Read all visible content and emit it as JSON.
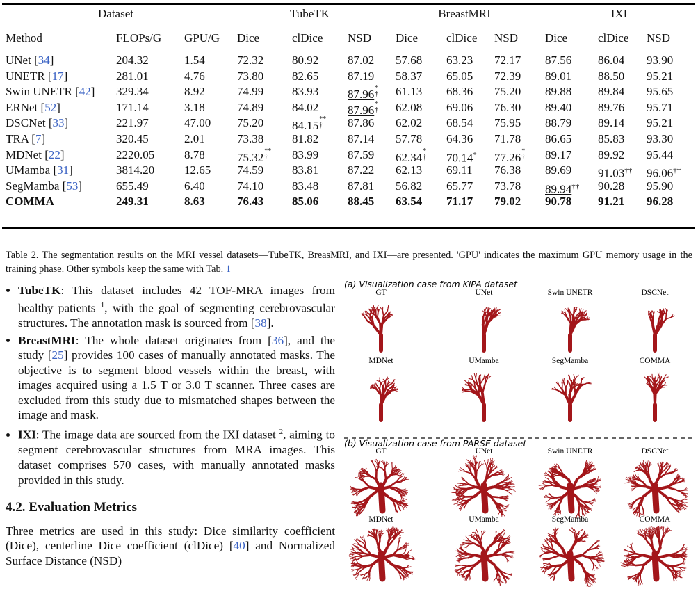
{
  "table": {
    "group_header": [
      "Dataset",
      "TubeTK",
      "BreastMRI",
      "IXI"
    ],
    "header": [
      "Method",
      "FLOPs/G",
      "GPU/G",
      "Dice",
      "clDice",
      "NSD",
      "Dice",
      "clDice",
      "NSD",
      "Dice",
      "clDice",
      "NSD"
    ],
    "rows": [
      {
        "method": [
          {
            "text": "UNet ["
          },
          {
            "text": "34",
            "style": "ref"
          },
          {
            "text": "]"
          }
        ],
        "cells": [
          "204.32",
          "1.54",
          "72.32",
          "80.92",
          "87.02",
          "57.68",
          "63.23",
          "72.17",
          "87.56",
          "86.04",
          "93.90"
        ]
      },
      {
        "method": [
          {
            "text": "UNETR ["
          },
          {
            "text": "17",
            "style": "ref"
          },
          {
            "text": "]"
          }
        ],
        "cells": [
          "281.01",
          "4.76",
          "73.80",
          "82.65",
          "87.19",
          "58.37",
          "65.05",
          "72.39",
          "89.01",
          "88.50",
          "95.21"
        ]
      },
      {
        "method": [
          {
            "text": "Swin UNETR ["
          },
          {
            "text": "42",
            "style": "ref"
          },
          {
            "text": "]"
          }
        ],
        "cells": [
          "329.34",
          "8.92",
          "74.99",
          "83.93",
          {
            "text": "87.96",
            "sup": "*",
            "sub": "†",
            "underline": true
          },
          "61.13",
          "68.36",
          "75.20",
          "89.88",
          "89.84",
          "95.65"
        ]
      },
      {
        "method": [
          {
            "text": "ERNet ["
          },
          {
            "text": "52",
            "style": "ref"
          },
          {
            "text": "]"
          }
        ],
        "cells": [
          "171.14",
          "3.18",
          "74.89",
          "84.02",
          {
            "text": "87.96",
            "sup": "*",
            "sub": "†",
            "underline": true
          },
          "62.08",
          "69.06",
          "76.30",
          "89.40",
          "89.76",
          "95.71"
        ]
      },
      {
        "method": [
          {
            "text": "DSCNet ["
          },
          {
            "text": "33",
            "style": "ref"
          },
          {
            "text": "]"
          }
        ],
        "cells": [
          "221.97",
          "47.00",
          "75.20",
          {
            "text": "84.15",
            "sup": "**",
            "sub": "†",
            "underline": true
          },
          "87.86",
          "62.02",
          "68.54",
          "75.95",
          "88.79",
          "89.14",
          "95.21"
        ]
      },
      {
        "method": [
          {
            "text": "TRA ["
          },
          {
            "text": "7",
            "style": "ref"
          },
          {
            "text": "]"
          }
        ],
        "cells": [
          "320.45",
          "2.01",
          "73.38",
          "81.82",
          "87.14",
          "57.78",
          "64.36",
          "71.78",
          "86.65",
          "85.83",
          "93.30"
        ]
      },
      {
        "method": [
          {
            "text": "MDNet ["
          },
          {
            "text": "22",
            "style": "ref"
          },
          {
            "text": "]"
          }
        ],
        "cells": [
          "2220.05",
          "8.78",
          {
            "text": "75.32",
            "sup": "**",
            "sub": "†",
            "underline": true
          },
          "83.99",
          "87.59",
          {
            "text": "62.34",
            "sup": "*",
            "sub": "†",
            "underline": true
          },
          {
            "text": "70.14",
            "sup": "*",
            "underline": true
          },
          {
            "text": "77.26",
            "sup": "*",
            "sub": "†",
            "underline": true
          },
          "89.17",
          "89.92",
          "95.44"
        ]
      },
      {
        "method": [
          {
            "text": "UMamba ["
          },
          {
            "text": "31",
            "style": "ref"
          },
          {
            "text": "]"
          }
        ],
        "cells": [
          "3814.20",
          "12.65",
          "74.59",
          "83.81",
          "87.22",
          "62.13",
          "69.11",
          "76.38",
          "89.69",
          {
            "text": "91.03",
            "sup": "††",
            "underline": true
          },
          {
            "text": "96.06",
            "sup": "††",
            "underline": true
          }
        ]
      },
      {
        "method": [
          {
            "text": "SegMamba ["
          },
          {
            "text": "53",
            "style": "ref"
          },
          {
            "text": "]"
          }
        ],
        "cells": [
          "655.49",
          "6.40",
          "74.10",
          "83.48",
          "87.81",
          "56.82",
          "65.77",
          "73.78",
          {
            "text": "89.94",
            "sup": "††",
            "underline": true
          },
          "90.28",
          "95.90"
        ]
      },
      {
        "method": [
          {
            "text": "COMMA"
          }
        ],
        "bold": true,
        "cells": [
          "249.31",
          "8.63",
          "76.43",
          "85.06",
          "88.45",
          "63.54",
          "71.17",
          "79.02",
          "90.78",
          "91.21",
          "96.28"
        ]
      }
    ]
  },
  "caption": [
    {
      "text": "Table 2. The segmentation results on the MRI vessel datasets—TubeTK, BreasMRI, and IXI—are presented. 'GPU' indicates the maximum GPU memory usage in the training phase. Other symbols keep the same with Tab. "
    },
    {
      "text": "1",
      "style": "ref"
    }
  ],
  "bullets": [
    [
      {
        "text": "TubeTK",
        "style": "bold"
      },
      {
        "text": ": This dataset includes 42 TOF-MRA images from healthy patients "
      },
      {
        "text": "1",
        "style": "sup"
      },
      {
        "text": ", with the goal of segmenting cerebrovascular structures. The annotation mask is sourced from ["
      },
      {
        "text": "38",
        "style": "ref"
      },
      {
        "text": "]."
      }
    ],
    [
      {
        "text": "BreastMRI",
        "style": "bold"
      },
      {
        "text": ": The whole dataset originates from ["
      },
      {
        "text": "36",
        "style": "ref"
      },
      {
        "text": "], and the study ["
      },
      {
        "text": "25",
        "style": "ref"
      },
      {
        "text": "] provides 100 cases of manually annotated masks. The objective is to segment blood vessels within the breast, with images acquired using a 1.5 T or 3.0 T scanner. Three cases are excluded from this study due to mismatched shapes between the image and mask."
      }
    ],
    [
      {
        "text": "IXI",
        "style": "bold"
      },
      {
        "text": ": The image data are sourced from the IXI dataset "
      },
      {
        "text": "2",
        "style": "sup"
      },
      {
        "text": ", aiming to segment cerebrovascular structures from MRA images. This dataset comprises 570 cases, with manually annotated masks provided in this study."
      }
    ]
  ],
  "section_heading": "4.2. Evaluation Metrics",
  "paragraph": [
    {
      "text": "Three metrics are used in this study: Dice similarity coefficient (Dice), centerline Dice coefficient (clDice) ["
    },
    {
      "text": "40",
      "style": "ref"
    },
    {
      "text": "] and Normalized Surface Distance (NSD)"
    }
  ],
  "figure": {
    "panels": [
      {
        "title": "(a) Visualization case from KiPA dataset",
        "labels": [
          "GT",
          "UNet",
          "Swin UNETR",
          "DSCNet",
          "MDNet",
          "UMamba",
          "SegMamba",
          "COMMA"
        ]
      },
      {
        "title": "(b) Visualization case from PARSE dataset",
        "labels": [
          "GT",
          "UNet",
          "Swin UNETR",
          "DSCNet",
          "MDNet",
          "UMamba",
          "SegMamba",
          "COMMA"
        ]
      }
    ]
  }
}
